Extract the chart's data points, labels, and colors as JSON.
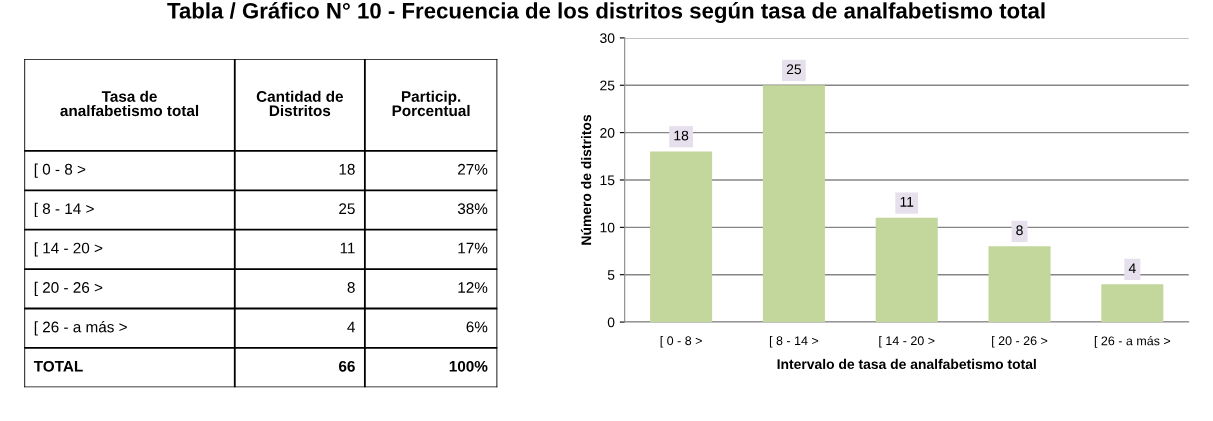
{
  "chart_data": [
    {
      "type": "other",
      "categories": [
        "Tasa de\nanalfabetismo total",
        "Cantidad de\nDistritos",
        "Particip.\nPorcentual"
      ],
      "y_categories": [
        "[ 0 - 8 >",
        "[ 8 - 14 >",
        "[ 14 - 20 >",
        "[ 20 - 26 >",
        "[ 26 - a más >",
        "TOTAL"
      ],
      "cell_labels": [
        [
          "18",
          "27%"
        ],
        [
          "25",
          "38%"
        ],
        [
          "11",
          "17%"
        ],
        [
          "8",
          "12%"
        ],
        [
          "4",
          "6%"
        ],
        [
          "66",
          "100%"
        ]
      ]
    },
    {
      "type": "bar",
      "title": "Tabla / Gráfico N° 10 - Frecuencia de los distritos según tasa de analfabetismo total",
      "categories": [
        "[ 0 - 8 >",
        "[ 8 - 14 >",
        "[ 14 - 20 >",
        "[ 20 - 26 >",
        "[ 26 - a más >"
      ],
      "values": [
        18,
        25,
        11,
        8,
        4
      ],
      "color": "#c3d69b",
      "xlabel": "Intervalo de tasa de analfabetismo total",
      "ylabel": "Número de distritos",
      "ylim": [
        0,
        30
      ],
      "yticks": [
        0,
        5,
        10,
        15,
        20,
        25,
        30
      ],
      "grid": "y",
      "data_labels": true
    }
  ]
}
